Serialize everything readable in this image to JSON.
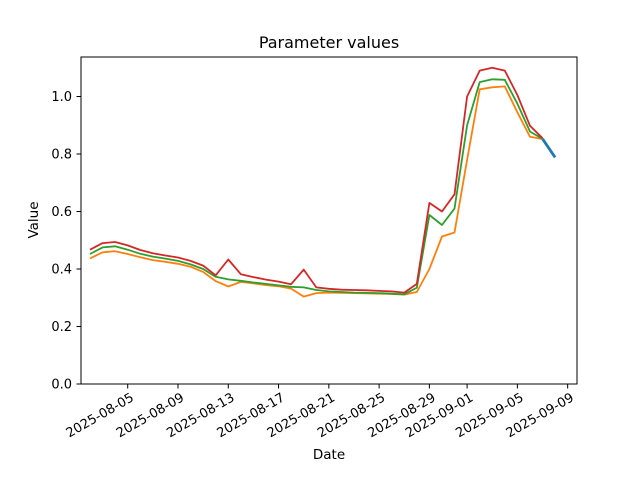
{
  "chart_data": {
    "type": "line",
    "title": "Parameter values",
    "xlabel": "Date",
    "ylabel": "Value",
    "grid": false,
    "legend": "none",
    "ylim": [
      0.0,
      1.137
    ],
    "y_tick_values": [
      0.0,
      0.2,
      0.4,
      0.6,
      0.8,
      1.0
    ],
    "x_tick_labels": [
      "2025-08-05",
      "2025-08-09",
      "2025-08-13",
      "2025-08-17",
      "2025-08-21",
      "2025-08-25",
      "2025-08-29",
      "2025-09-01",
      "2025-09-05",
      "2025-09-09"
    ],
    "dates": [
      "2025-08-02",
      "2025-08-03",
      "2025-08-04",
      "2025-08-05",
      "2025-08-06",
      "2025-08-07",
      "2025-08-08",
      "2025-08-09",
      "2025-08-10",
      "2025-08-11",
      "2025-08-12",
      "2025-08-13",
      "2025-08-14",
      "2025-08-15",
      "2025-08-16",
      "2025-08-17",
      "2025-08-18",
      "2025-08-19",
      "2025-08-20",
      "2025-08-21",
      "2025-08-22",
      "2025-08-23",
      "2025-08-24",
      "2025-08-25",
      "2025-08-26",
      "2025-08-27",
      "2025-08-28",
      "2025-08-29",
      "2025-08-30",
      "2025-08-31",
      "2025-09-01",
      "2025-09-02",
      "2025-09-03",
      "2025-09-04",
      "2025-09-05",
      "2025-09-06",
      "2025-09-07",
      "2025-09-08"
    ],
    "series": [
      {
        "name": "series-blue",
        "color": "#1f77b4",
        "line_width": 2.8,
        "values": [
          null,
          null,
          null,
          null,
          null,
          null,
          null,
          null,
          null,
          null,
          null,
          null,
          null,
          null,
          null,
          null,
          null,
          null,
          null,
          null,
          null,
          null,
          null,
          null,
          null,
          null,
          null,
          null,
          null,
          null,
          null,
          null,
          null,
          null,
          null,
          null,
          0.853,
          0.788
        ]
      },
      {
        "name": "series-orange",
        "color": "#ff7f0e",
        "line_width": 1.8,
        "values": [
          0.437,
          0.458,
          0.462,
          0.452,
          0.441,
          0.431,
          0.425,
          0.418,
          0.408,
          0.39,
          0.358,
          0.339,
          0.355,
          0.35,
          0.344,
          0.34,
          0.332,
          0.304,
          0.316,
          0.318,
          0.317,
          0.316,
          0.315,
          0.314,
          0.313,
          0.311,
          0.32,
          0.4,
          0.513,
          0.527,
          0.78,
          1.025,
          1.032,
          1.035,
          0.945,
          0.86,
          0.852,
          null
        ]
      },
      {
        "name": "series-green",
        "color": "#2ca02c",
        "line_width": 1.8,
        "values": [
          0.452,
          0.475,
          0.479,
          0.467,
          0.453,
          0.443,
          0.436,
          0.428,
          0.416,
          0.4,
          0.373,
          0.364,
          0.359,
          0.353,
          0.348,
          0.343,
          0.338,
          0.336,
          0.327,
          0.322,
          0.32,
          0.318,
          0.317,
          0.316,
          0.314,
          0.312,
          0.335,
          0.588,
          0.553,
          0.61,
          0.9,
          1.05,
          1.06,
          1.058,
          0.975,
          0.878,
          0.853,
          null
        ]
      },
      {
        "name": "series-red",
        "color": "#d62728",
        "line_width": 1.8,
        "values": [
          0.467,
          0.49,
          0.494,
          0.482,
          0.466,
          0.455,
          0.447,
          0.44,
          0.428,
          0.412,
          0.378,
          0.433,
          0.382,
          0.372,
          0.363,
          0.356,
          0.347,
          0.398,
          0.336,
          0.331,
          0.328,
          0.327,
          0.326,
          0.324,
          0.322,
          0.318,
          0.348,
          0.63,
          0.6,
          0.66,
          1.0,
          1.09,
          1.1,
          1.09,
          1.005,
          0.898,
          0.855,
          null
        ]
      }
    ]
  }
}
